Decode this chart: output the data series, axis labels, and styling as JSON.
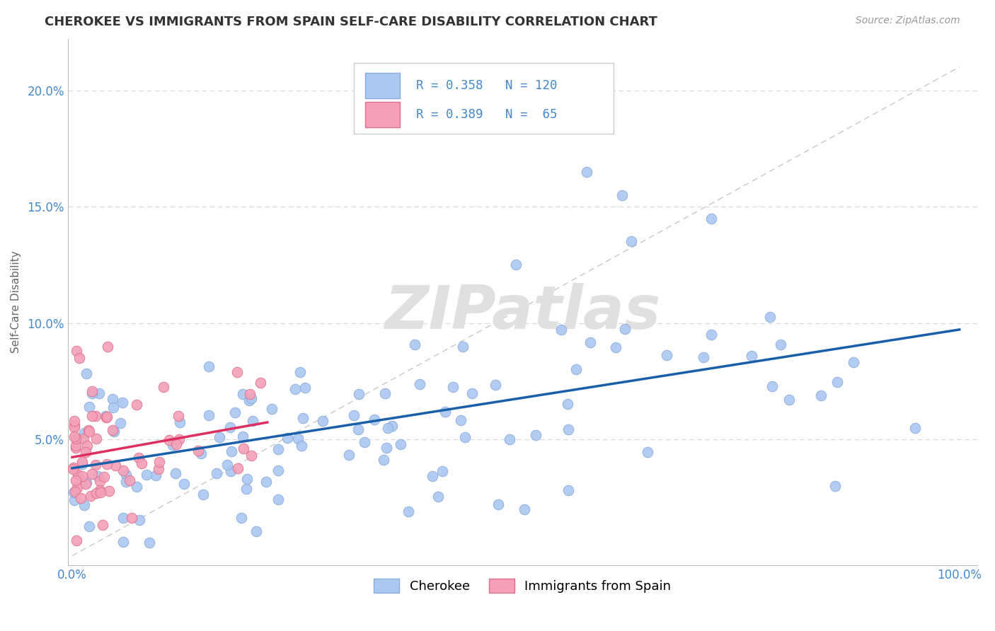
{
  "title": "CHEROKEE VS IMMIGRANTS FROM SPAIN SELF-CARE DISABILITY CORRELATION CHART",
  "source": "Source: ZipAtlas.com",
  "ylabel": "Self-Care Disability",
  "cherokee_color": "#aac8f0",
  "cherokee_edge_color": "#88aadd",
  "cherokee_line_color": "#1a5faa",
  "spain_color": "#f4a0b8",
  "spain_edge_color": "#dd7090",
  "spain_line_color": "#dd3060",
  "watermark_color": "#e0e0e0",
  "ref_line_color": "#c8c8c8",
  "grid_color": "#d8d8d8",
  "tick_color": "#4488cc",
  "ytick_vals": [
    0.0,
    0.05,
    0.1,
    0.15,
    0.2
  ],
  "ytick_labels": [
    "",
    "5.0%",
    "10.0%",
    "15.0%",
    "20.0%"
  ],
  "xtick_vals": [
    0.0,
    0.1,
    0.2,
    0.3,
    0.4,
    0.5,
    0.6,
    0.7,
    0.8,
    0.9,
    1.0
  ],
  "xtick_labels": [
    "0.0%",
    "",
    "",
    "",
    "",
    "",
    "",
    "",
    "",
    "",
    "100.0%"
  ],
  "legend_R_cherokee": "0.358",
  "legend_N_cherokee": "120",
  "legend_R_spain": "0.389",
  "legend_N_spain": "65",
  "cherokee_seed": 42,
  "spain_seed": 99
}
